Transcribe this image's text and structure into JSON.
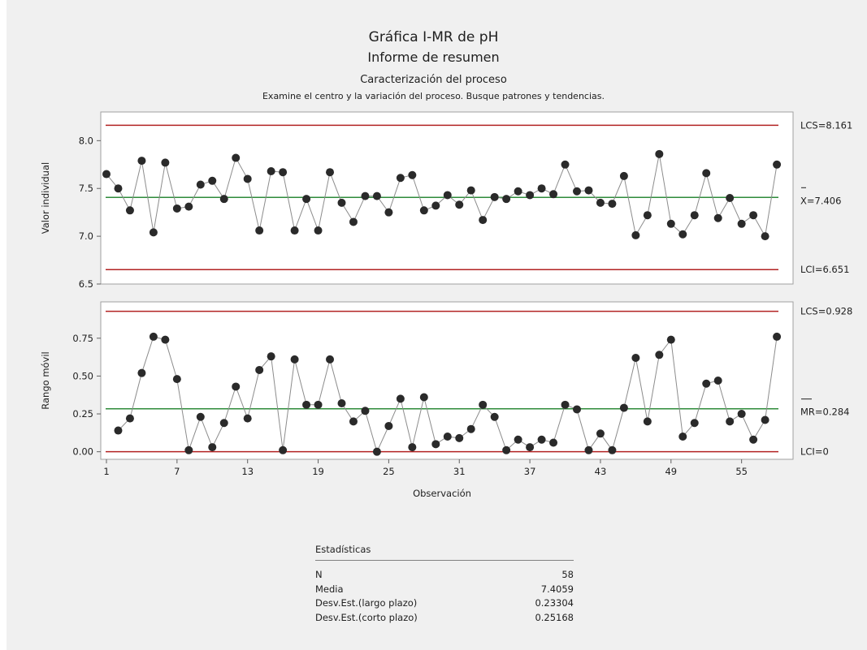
{
  "header": {
    "title": "Gráfica I-MR de pH",
    "subtitle": "Informe de resumen",
    "section": "Caracterización del proceso",
    "instruction": "Examine el centro y la variación del proceso. Busque patrones y tendencias."
  },
  "colors": {
    "limit": "#b22222",
    "center": "#2e8b3a",
    "line": "#8c8c8c",
    "point": "#2a2a2a",
    "background": "#f0f0f0"
  },
  "chart_data": [
    {
      "type": "line",
      "name": "individual",
      "ylabel": "Valor individual",
      "ylim": [
        6.5,
        8.3
      ],
      "yticks": [
        "6.5",
        "7.0",
        "7.5",
        "8.0"
      ],
      "limits": {
        "ucl": "LCS=8.161",
        "center": "X=7.406",
        "lcl": "LCI=6.651"
      },
      "limit_values": {
        "ucl": 8.161,
        "center": 7.406,
        "lcl": 6.651
      },
      "x": [
        1,
        2,
        3,
        4,
        5,
        6,
        7,
        8,
        9,
        10,
        11,
        12,
        13,
        14,
        15,
        16,
        17,
        18,
        19,
        20,
        21,
        22,
        23,
        24,
        25,
        26,
        27,
        28,
        29,
        30,
        31,
        32,
        33,
        34,
        35,
        36,
        37,
        38,
        39,
        40,
        41,
        42,
        43,
        44,
        45,
        46,
        47,
        48,
        49,
        50,
        51,
        52,
        53,
        54,
        55,
        56,
        57,
        58
      ],
      "values": [
        7.65,
        7.5,
        7.27,
        7.79,
        7.04,
        7.77,
        7.29,
        7.31,
        7.54,
        7.58,
        7.39,
        7.82,
        7.6,
        7.06,
        7.68,
        7.67,
        7.06,
        7.39,
        7.06,
        7.67,
        7.35,
        7.15,
        7.42,
        7.42,
        7.25,
        7.61,
        7.64,
        7.27,
        7.32,
        7.43,
        7.33,
        7.48,
        7.17,
        7.41,
        7.39,
        7.47,
        7.43,
        7.5,
        7.44,
        7.75,
        7.47,
        7.48,
        7.35,
        7.34,
        7.63,
        7.01,
        7.22,
        7.86,
        7.13,
        7.02,
        7.22,
        7.66,
        7.19,
        7.4,
        7.13,
        7.22,
        7.0,
        7.75
      ]
    },
    {
      "type": "line",
      "name": "moving-range",
      "ylabel": "Rango móvil",
      "xlabel": "Observación",
      "ylim": [
        -0.05,
        0.99
      ],
      "yticks": [
        "0.00",
        "0.25",
        "0.50",
        "0.75"
      ],
      "xticks": [
        "1",
        "7",
        "13",
        "19",
        "25",
        "31",
        "37",
        "43",
        "49",
        "55"
      ],
      "limits": {
        "ucl": "LCS=0.928",
        "center": "MR=0.284",
        "lcl": "LCI=0"
      },
      "limit_values": {
        "ucl": 0.928,
        "center": 0.284,
        "lcl": 0
      },
      "x": [
        2,
        3,
        4,
        5,
        6,
        7,
        8,
        9,
        10,
        11,
        12,
        13,
        14,
        15,
        16,
        17,
        18,
        19,
        20,
        21,
        22,
        23,
        24,
        25,
        26,
        27,
        28,
        29,
        30,
        31,
        32,
        33,
        34,
        35,
        36,
        37,
        38,
        39,
        40,
        41,
        42,
        43,
        44,
        45,
        46,
        47,
        48,
        49,
        50,
        51,
        52,
        53,
        54,
        55,
        56,
        57,
        58
      ],
      "values": [
        0.14,
        0.22,
        0.52,
        0.76,
        0.74,
        0.48,
        0.01,
        0.23,
        0.03,
        0.19,
        0.43,
        0.22,
        0.54,
        0.63,
        0.01,
        0.61,
        0.31,
        0.31,
        0.61,
        0.32,
        0.2,
        0.27,
        0.0,
        0.17,
        0.35,
        0.03,
        0.36,
        0.05,
        0.1,
        0.09,
        0.15,
        0.31,
        0.23,
        0.01,
        0.08,
        0.03,
        0.08,
        0.06,
        0.31,
        0.28,
        0.01,
        0.12,
        0.01,
        0.29,
        0.62,
        0.2,
        0.64,
        0.74,
        0.1,
        0.19,
        0.45,
        0.47,
        0.2,
        0.25,
        0.08,
        0.21,
        0.76
      ]
    }
  ],
  "stats": {
    "title": "Estadísticas",
    "rows": [
      {
        "label": "N",
        "value": "58"
      },
      {
        "label": "Media",
        "value": "7.4059"
      },
      {
        "label": "Desv.Est.(largo plazo)",
        "value": "0.23304"
      },
      {
        "label": "Desv.Est.(corto plazo)",
        "value": "0.25168"
      }
    ]
  }
}
